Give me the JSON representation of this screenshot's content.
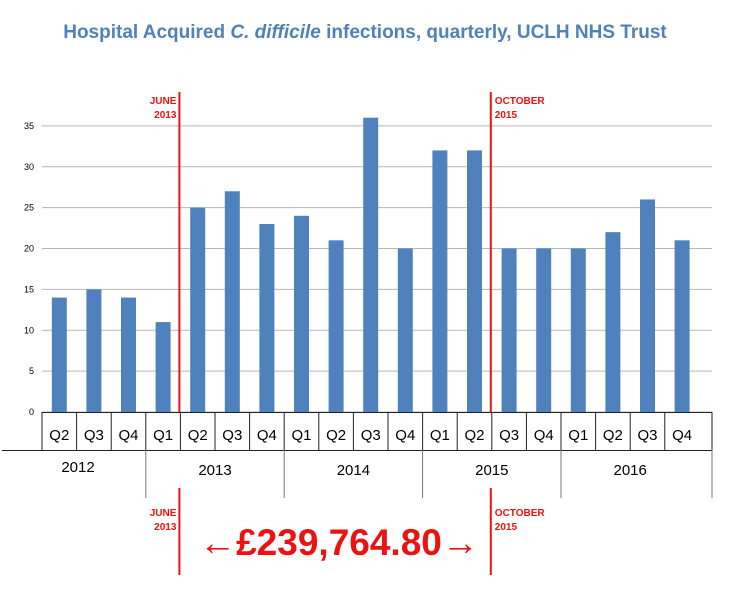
{
  "colors": {
    "title": "#4f81bd",
    "bar": "#4f81bd",
    "marker": "#ee1111",
    "grid": "#b7b7b7",
    "axis_text": "#000000"
  },
  "chart_data": {
    "type": "bar",
    "title_parts": [
      "Hospital Acquired ",
      "C. difficile",
      " infections, quarterly, UCLH NHS Trust"
    ],
    "categories": [
      "Q2",
      "Q3",
      "Q4",
      "Q1",
      "Q2",
      "Q3",
      "Q4",
      "Q1",
      "Q2",
      "Q3",
      "Q4",
      "Q1",
      "Q2",
      "Q3",
      "Q4",
      "Q1",
      "Q2",
      "Q3",
      "Q4"
    ],
    "values": [
      14,
      15,
      14,
      11,
      25,
      27,
      23,
      24,
      21,
      36,
      20,
      32,
      32,
      20,
      20,
      20,
      22,
      26,
      21
    ],
    "years": [
      {
        "label": "2012",
        "quarters": 3
      },
      {
        "label": "2013",
        "quarters": 4
      },
      {
        "label": "2014",
        "quarters": 4
      },
      {
        "label": "2015",
        "quarters": 4
      },
      {
        "label": "2016",
        "quarters": 4
      }
    ],
    "ylim": [
      0,
      40
    ],
    "yticks": [
      0,
      5,
      10,
      15,
      20,
      25,
      30,
      35
    ],
    "grid": true,
    "markers": [
      {
        "after_index": 3,
        "label_line1": "JUNE",
        "label_line2": "2013"
      },
      {
        "after_index": 12,
        "label_line1": "OCTOBER",
        "label_line2": "2015"
      }
    ],
    "cost_annotation": "←£239,764.80→"
  }
}
